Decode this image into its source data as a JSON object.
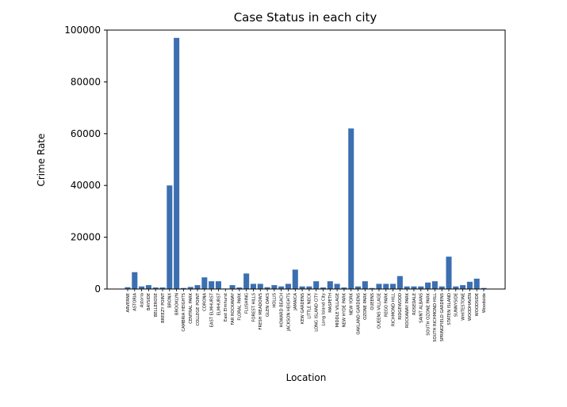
{
  "chart_data": {
    "type": "bar",
    "title": "Case Status in each city",
    "xlabel": "Location",
    "ylabel": "Crime Rate",
    "ylim": [
      0,
      100000
    ],
    "yticks": [
      0,
      20000,
      40000,
      60000,
      80000,
      100000
    ],
    "grid": false,
    "bar_color": "#3c6fb0",
    "categories": [
      "ARVERNE",
      "ASTORIA",
      "Astoria",
      "BAYSIDE",
      "BELLEROSE",
      "BREEZY POINT",
      "BRONX",
      "BROOKLYN",
      "CAMBRIA HEIGHTS",
      "CENTRAL PARK",
      "COLLEGE POINT",
      "CORONA",
      "EAST ELMHURST",
      "ELMHURST",
      "East Elmhurst",
      "FAR ROCKAWAY",
      "FLORAL PARK",
      "FLUSHING",
      "FOREST HILLS",
      "FRESH MEADOWS",
      "GLEN OAKS",
      "HOLLIS",
      "HOWARD BEACH",
      "JACKSON HEIGHTS",
      "JAMAICA",
      "KEW GARDENS",
      "LITTLE NECK",
      "LONG ISLAND CITY",
      "Long Island City",
      "MASPETH",
      "MIDDLE VILLAGE",
      "NEW HYDE PARK",
      "NEW YORK",
      "OAKLAND GARDENS",
      "OZONE PARK",
      "QUEENS",
      "QUEENS VILLAGE",
      "REGO PARK",
      "RICHMOND HILL",
      "RIDGEWOOD",
      "ROCKAWAY PARK",
      "ROSEDALE",
      "SAINT ALBANS",
      "SOUTH OZONE PARK",
      "SOUTH RICHMOND HILL",
      "SPRINGFIELD GARDENS",
      "STATEN ISLAND",
      "SUNNYSIDE",
      "WHITESTONE",
      "WOODHAVEN",
      "WOODSIDE",
      "Woodside"
    ],
    "values": [
      700,
      6500,
      1000,
      1500,
      600,
      600,
      40000,
      97000,
      400,
      800,
      1500,
      4500,
      3000,
      3000,
      200,
      1500,
      600,
      6000,
      2000,
      2000,
      700,
      1500,
      1000,
      2000,
      7500,
      1000,
      1000,
      3000,
      600,
      3000,
      2000,
      600,
      62000,
      1000,
      3000,
      400,
      2000,
      2000,
      2000,
      5000,
      1000,
      1000,
      1000,
      2500,
      3000,
      1000,
      12500,
      1000,
      1500,
      2800,
      4000,
      400
    ]
  }
}
